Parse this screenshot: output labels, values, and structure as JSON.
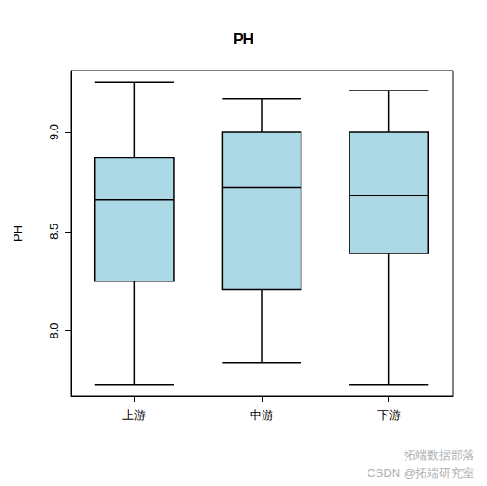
{
  "chart_data": {
    "type": "boxplot",
    "title": "PH",
    "y_label": "PH",
    "categories": [
      "上游",
      "中游",
      "下游"
    ],
    "stats": [
      {
        "low": 7.73,
        "q1": 8.25,
        "median": 8.66,
        "q3": 8.87,
        "high": 9.25
      },
      {
        "low": 7.84,
        "q1": 8.21,
        "median": 8.72,
        "q3": 9.0,
        "high": 9.17
      },
      {
        "low": 7.73,
        "q1": 8.39,
        "median": 8.68,
        "q3": 9.0,
        "high": 9.21
      }
    ],
    "color": "#add8e6",
    "ylim": [
      7.67,
      9.31
    ],
    "yticks": [
      {
        "value": 8,
        "label": "8.0"
      },
      {
        "value": 8.5,
        "label": "8.5"
      },
      {
        "value": 9,
        "label": "9.0"
      }
    ],
    "grid": false,
    "annotations": [
      "拓端数据部落",
      "CSDN @拓端研究室"
    ]
  }
}
